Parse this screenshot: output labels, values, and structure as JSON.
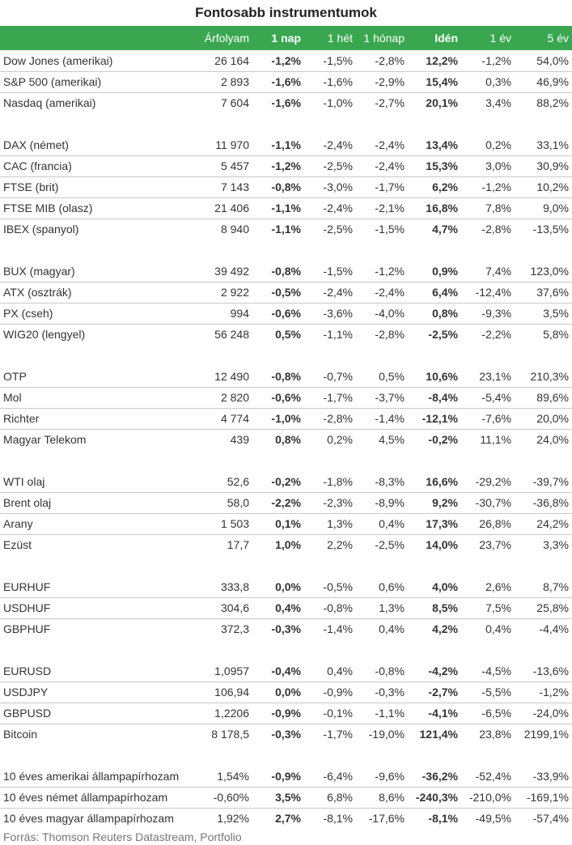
{
  "title": "Fontosabb instrumentumok",
  "header": [
    "",
    "Árfolyam",
    "1 nap",
    "1 hét",
    "1 hónap",
    "Idén",
    "1 év",
    "5 év"
  ],
  "groups": [
    [
      [
        "Dow Jones (amerikai)",
        "26 164",
        "-1,2%",
        "-1,5%",
        "-2,8%",
        "12,2%",
        "-1,2%",
        "54,0%"
      ],
      [
        "S&P 500 (amerikai)",
        "2 893",
        "-1,6%",
        "-1,6%",
        "-2,9%",
        "15,4%",
        "0,3%",
        "46,9%"
      ],
      [
        "Nasdaq (amerikai)",
        "7 604",
        "-1,6%",
        "-1,0%",
        "-2,7%",
        "20,1%",
        "3,4%",
        "88,2%"
      ]
    ],
    [
      [
        "DAX (német)",
        "11 970",
        "-1,1%",
        "-2,4%",
        "-2,4%",
        "13,4%",
        "0,2%",
        "33,1%"
      ],
      [
        "CAC (francia)",
        "5 457",
        "-1,2%",
        "-2,5%",
        "-2,4%",
        "15,3%",
        "3,0%",
        "30,9%"
      ],
      [
        "FTSE (brit)",
        "7 143",
        "-0,8%",
        "-3,0%",
        "-1,7%",
        "6,2%",
        "-1,2%",
        "10,2%"
      ],
      [
        "FTSE MIB (olasz)",
        "21 406",
        "-1,1%",
        "-2,4%",
        "-2,1%",
        "16,8%",
        "7,8%",
        "9,0%"
      ],
      [
        "IBEX (spanyol)",
        "8 940",
        "-1,1%",
        "-2,5%",
        "-1,5%",
        "4,7%",
        "-2,8%",
        "-13,5%"
      ]
    ],
    [
      [
        "BUX (magyar)",
        "39 492",
        "-0,8%",
        "-1,5%",
        "-1,2%",
        "0,9%",
        "7,4%",
        "123,0%"
      ],
      [
        "ATX (osztrák)",
        "2 922",
        "-0,5%",
        "-2,4%",
        "-2,4%",
        "6,4%",
        "-12,4%",
        "37,6%"
      ],
      [
        "PX (cseh)",
        "994",
        "-0,6%",
        "-3,6%",
        "-4,0%",
        "0,8%",
        "-9,3%",
        "3,5%"
      ],
      [
        "WIG20 (lengyel)",
        "56 248",
        "0,5%",
        "-1,1%",
        "-2,8%",
        "-2,5%",
        "-2,2%",
        "5,8%"
      ]
    ],
    [
      [
        "OTP",
        "12 490",
        "-0,8%",
        "-0,7%",
        "0,5%",
        "10,6%",
        "23,1%",
        "210,3%"
      ],
      [
        "Mol",
        "2 820",
        "-0,6%",
        "-1,7%",
        "-3,7%",
        "-8,4%",
        "-5,4%",
        "89,6%"
      ],
      [
        "Richter",
        "4 774",
        "-1,0%",
        "-2,8%",
        "-1,4%",
        "-12,1%",
        "-7,6%",
        "20,0%"
      ],
      [
        "Magyar Telekom",
        "439",
        "0,8%",
        "0,2%",
        "4,5%",
        "-0,2%",
        "11,1%",
        "24,0%"
      ]
    ],
    [
      [
        "WTI olaj",
        "52,6",
        "-0,2%",
        "-1,8%",
        "-8,3%",
        "16,6%",
        "-29,2%",
        "-39,7%"
      ],
      [
        "Brent olaj",
        "58,0",
        "-2,2%",
        "-2,3%",
        "-8,9%",
        "9,2%",
        "-30,7%",
        "-36,8%"
      ],
      [
        "Arany",
        "1 503",
        "0,1%",
        "1,3%",
        "0,4%",
        "17,3%",
        "26,8%",
        "24,2%"
      ],
      [
        "Ezüst",
        "17,7",
        "1,0%",
        "2,2%",
        "-2,5%",
        "14,0%",
        "23,7%",
        "3,3%"
      ]
    ],
    [
      [
        "EURHUF",
        "333,8",
        "0,0%",
        "-0,5%",
        "0,6%",
        "4,0%",
        "2,6%",
        "8,7%"
      ],
      [
        "USDHUF",
        "304,6",
        "0,4%",
        "-0,8%",
        "1,3%",
        "8,5%",
        "7,5%",
        "25,8%"
      ],
      [
        "GBPHUF",
        "372,3",
        "-0,3%",
        "-1,4%",
        "0,4%",
        "4,2%",
        "0,4%",
        "-4,4%"
      ]
    ],
    [
      [
        "EURUSD",
        "1,0957",
        "-0,4%",
        "0,4%",
        "-0,8%",
        "-4,2%",
        "-4,5%",
        "-13,6%"
      ],
      [
        "USDJPY",
        "106,94",
        "0,0%",
        "-0,9%",
        "-0,3%",
        "-2,7%",
        "-5,5%",
        "-1,2%"
      ],
      [
        "GBPUSD",
        "1,2206",
        "-0,9%",
        "-0,1%",
        "-1,1%",
        "-4,1%",
        "-6,5%",
        "-24,0%"
      ],
      [
        "Bitcoin",
        "8 178,5",
        "-0,3%",
        "-1,7%",
        "-19,0%",
        "121,4%",
        "23,8%",
        "2199,1%"
      ]
    ],
    [
      [
        "10 éves amerikai állampapírhozam",
        "1,54%",
        "-0,9%",
        "-6,4%",
        "-9,6%",
        "-36,2%",
        "-52,4%",
        "-33,9%"
      ],
      [
        "10 éves német állampapírhozam",
        "-0,60%",
        "3,5%",
        "6,8%",
        "8,6%",
        "-240,3%",
        "-210,0%",
        "-169,1%"
      ],
      [
        "10 éves magyar állampapírhozam",
        "1,92%",
        "2,7%",
        "-8,1%",
        "-17,6%",
        "-8,1%",
        "-49,5%",
        "-57,4%"
      ]
    ]
  ],
  "source": "Forrás: Thomson Reuters Datastream, Portfolio"
}
